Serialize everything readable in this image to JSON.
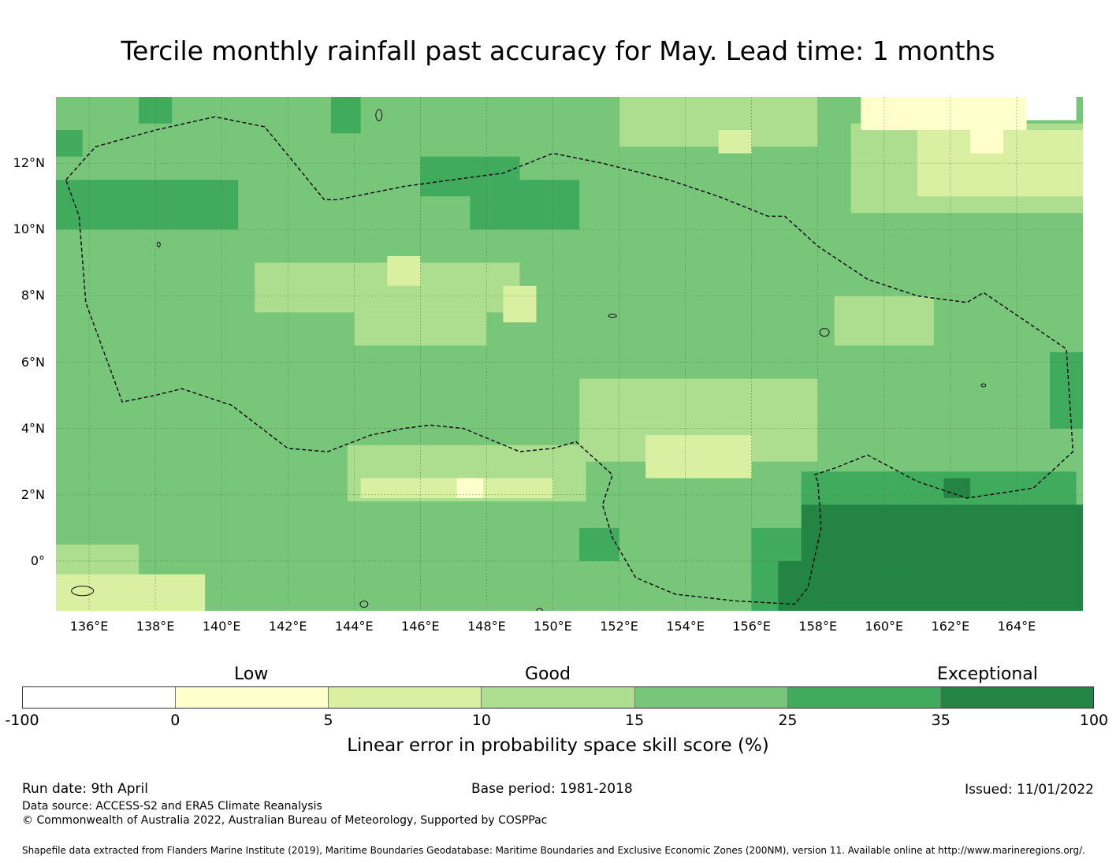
{
  "title": "Tercile monthly rainfall past accuracy for May. Lead time: 1 months",
  "map": {
    "extent": {
      "lon_min": 135,
      "lon_max": 166,
      "lat_min": -1.5,
      "lat_max": 14
    },
    "lat_ticks": [
      {
        "value": 12,
        "label": "12°N"
      },
      {
        "value": 10,
        "label": "10°N"
      },
      {
        "value": 8,
        "label": "8°N"
      },
      {
        "value": 6,
        "label": "6°N"
      },
      {
        "value": 4,
        "label": "4°N"
      },
      {
        "value": 2,
        "label": "2°N"
      },
      {
        "value": 0,
        "label": "0°"
      }
    ],
    "lon_ticks": [
      {
        "value": 136,
        "label": "136°E"
      },
      {
        "value": 138,
        "label": "138°E"
      },
      {
        "value": 140,
        "label": "140°E"
      },
      {
        "value": 142,
        "label": "142°E"
      },
      {
        "value": 144,
        "label": "144°E"
      },
      {
        "value": 146,
        "label": "146°E"
      },
      {
        "value": 148,
        "label": "148°E"
      },
      {
        "value": 150,
        "label": "150°E"
      },
      {
        "value": 152,
        "label": "152°E"
      },
      {
        "value": 154,
        "label": "154°E"
      },
      {
        "value": 156,
        "label": "156°E"
      },
      {
        "value": 158,
        "label": "158°E"
      },
      {
        "value": 160,
        "label": "160°E"
      },
      {
        "value": 162,
        "label": "162°E"
      },
      {
        "value": 164,
        "label": "164°E"
      }
    ],
    "eez_boundary": [
      [
        135.3,
        11.5
      ],
      [
        136.2,
        12.5
      ],
      [
        138.0,
        13.0
      ],
      [
        139.8,
        13.4
      ],
      [
        141.3,
        13.1
      ],
      [
        143.1,
        10.9
      ],
      [
        143.5,
        10.9
      ],
      [
        145.5,
        11.3
      ],
      [
        147.7,
        11.6
      ],
      [
        148.5,
        11.7
      ],
      [
        150.0,
        12.3
      ],
      [
        151.5,
        12.0
      ],
      [
        153.5,
        11.5
      ],
      [
        155.0,
        11.0
      ],
      [
        156.5,
        10.4
      ],
      [
        157.0,
        10.4
      ],
      [
        158.0,
        9.5
      ],
      [
        159.5,
        8.5
      ],
      [
        161.0,
        8.0
      ],
      [
        162.5,
        7.8
      ],
      [
        163.0,
        8.1
      ],
      [
        165.5,
        6.4
      ],
      [
        165.7,
        3.3
      ],
      [
        164.5,
        2.2
      ],
      [
        162.5,
        1.9
      ],
      [
        161.0,
        2.4
      ],
      [
        159.5,
        3.2
      ],
      [
        158.5,
        2.8
      ],
      [
        157.9,
        2.6
      ],
      [
        158.0,
        2.4
      ],
      [
        158.1,
        1.0
      ],
      [
        157.7,
        -0.8
      ],
      [
        157.3,
        -1.3
      ],
      [
        155.5,
        -1.2
      ],
      [
        153.7,
        -1.0
      ],
      [
        152.5,
        -0.5
      ],
      [
        151.8,
        0.7
      ],
      [
        151.5,
        1.7
      ],
      [
        151.8,
        2.6
      ],
      [
        150.7,
        3.6
      ],
      [
        150.0,
        3.4
      ],
      [
        149.0,
        3.3
      ],
      [
        147.3,
        4.0
      ],
      [
        146.3,
        4.1
      ],
      [
        145.5,
        4.0
      ],
      [
        144.5,
        3.8
      ],
      [
        143.2,
        3.3
      ],
      [
        142.0,
        3.4
      ],
      [
        140.3,
        4.7
      ],
      [
        139.7,
        4.9
      ],
      [
        138.8,
        5.2
      ],
      [
        138.0,
        5.0
      ],
      [
        137.0,
        4.8
      ],
      [
        135.9,
        7.8
      ],
      [
        135.7,
        10.4
      ],
      [
        135.3,
        11.5
      ]
    ],
    "category_regions": [
      {
        "class": 4,
        "lon": [
          135,
          166
        ],
        "lat": [
          -1.5,
          14
        ]
      },
      {
        "class": 5,
        "lon": [
          135,
          140.5
        ],
        "lat": [
          10,
          11.5
        ]
      },
      {
        "class": 5,
        "lon": [
          147.5,
          150.8
        ],
        "lat": [
          10,
          11.5
        ]
      },
      {
        "class": 5,
        "lon": [
          146,
          149
        ],
        "lat": [
          11,
          12.2
        ]
      },
      {
        "class": 5,
        "lon": [
          143.3,
          144.2
        ],
        "lat": [
          12.9,
          14
        ]
      },
      {
        "class": 5,
        "lon": [
          137.5,
          138.5
        ],
        "lat": [
          13.2,
          14
        ]
      },
      {
        "class": 5,
        "lon": [
          135,
          135.8
        ],
        "lat": [
          12.2,
          13
        ]
      },
      {
        "class": 3,
        "lon": [
          141,
          149
        ],
        "lat": [
          7.5,
          9
        ]
      },
      {
        "class": 3,
        "lon": [
          144,
          148
        ],
        "lat": [
          6.5,
          7.5
        ]
      },
      {
        "class": 2,
        "lon": [
          145,
          146
        ],
        "lat": [
          8.3,
          9.2
        ]
      },
      {
        "class": 2,
        "lon": [
          148.5,
          149.5
        ],
        "lat": [
          7.2,
          8.3
        ]
      },
      {
        "class": 3,
        "lon": [
          152,
          158
        ],
        "lat": [
          12.5,
          14
        ]
      },
      {
        "class": 2,
        "lon": [
          155,
          156
        ],
        "lat": [
          12.3,
          13
        ]
      },
      {
        "class": 3,
        "lon": [
          159,
          166
        ],
        "lat": [
          10.5,
          13.2
        ]
      },
      {
        "class": 2,
        "lon": [
          161,
          166
        ],
        "lat": [
          11,
          13
        ]
      },
      {
        "class": 1,
        "lon": [
          159.3,
          164.3
        ],
        "lat": [
          13,
          14
        ]
      },
      {
        "class": 1,
        "lon": [
          162.6,
          163.6
        ],
        "lat": [
          12.3,
          13.2
        ]
      },
      {
        "class": 0,
        "lon": [
          164.3,
          165.8
        ],
        "lat": [
          13.3,
          14
        ]
      },
      {
        "class": 3,
        "lon": [
          150.8,
          158
        ],
        "lat": [
          3,
          5.5
        ]
      },
      {
        "class": 2,
        "lon": [
          152.8,
          156
        ],
        "lat": [
          2.5,
          3.8
        ]
      },
      {
        "class": 3,
        "lon": [
          143.8,
          151
        ],
        "lat": [
          1.8,
          3.5
        ]
      },
      {
        "class": 2,
        "lon": [
          144.2,
          150
        ],
        "lat": [
          1.9,
          2.5
        ]
      },
      {
        "class": 1,
        "lon": [
          147.1,
          147.9
        ],
        "lat": [
          1.9,
          2.5
        ]
      },
      {
        "class": 3,
        "lon": [
          158.5,
          161.5
        ],
        "lat": [
          6.5,
          8
        ]
      },
      {
        "class": 3,
        "lon": [
          135,
          137.5
        ],
        "lat": [
          -1.5,
          0.5
        ]
      },
      {
        "class": 2,
        "lon": [
          135,
          139.5
        ],
        "lat": [
          -1.5,
          -0.4
        ]
      },
      {
        "class": 5,
        "lon": [
          157.5,
          165.8
        ],
        "lat": [
          1.5,
          2.7
        ]
      },
      {
        "class": 5,
        "lon": [
          156,
          158
        ],
        "lat": [
          -1.5,
          1
        ]
      },
      {
        "class": 5,
        "lon": [
          150.8,
          152
        ],
        "lat": [
          0,
          1
        ]
      },
      {
        "class": 6,
        "lon": [
          157.5,
          166
        ],
        "lat": [
          -1.5,
          1.7
        ]
      },
      {
        "class": 6,
        "lon": [
          161.8,
          162.6
        ],
        "lat": [
          1.9,
          2.5
        ]
      },
      {
        "class": 6,
        "lon": [
          156.8,
          158
        ],
        "lat": [
          -1.5,
          0
        ]
      },
      {
        "class": 5,
        "lon": [
          165,
          166
        ],
        "lat": [
          4,
          6.3
        ]
      }
    ]
  },
  "legend": {
    "categories": [
      "Low",
      "Good",
      "Exceptional"
    ],
    "bounds": [
      "-100",
      "0",
      "5",
      "10",
      "15",
      "25",
      "35",
      "100"
    ],
    "colors": [
      "#ffffff",
      "#ffffcc",
      "#d9f0a3",
      "#addd8e",
      "#78c679",
      "#41ab5d",
      "#238443"
    ],
    "title": "Linear error in probability space skill score (%)"
  },
  "footer": {
    "run_date": "Run date: 9th April",
    "base_period": "Base period: 1981-2018",
    "issued": "Issued: 11/01/2022",
    "data_source": "Data source: ACCESS-S2 and ERA5 Climate Reanalysis",
    "copyright": "© Commonwealth of Australia 2022, Australian Bureau of Meteorology, Supported by COSPPac",
    "shapefile_note": "Shapefile data extracted from Flanders Marine Institute (2019), Maritime Boundaries Geodatabase: Maritime Boundaries and Exclusive Economic Zones (200NM), version 11. Available online at http://www.marineregions.org/."
  }
}
